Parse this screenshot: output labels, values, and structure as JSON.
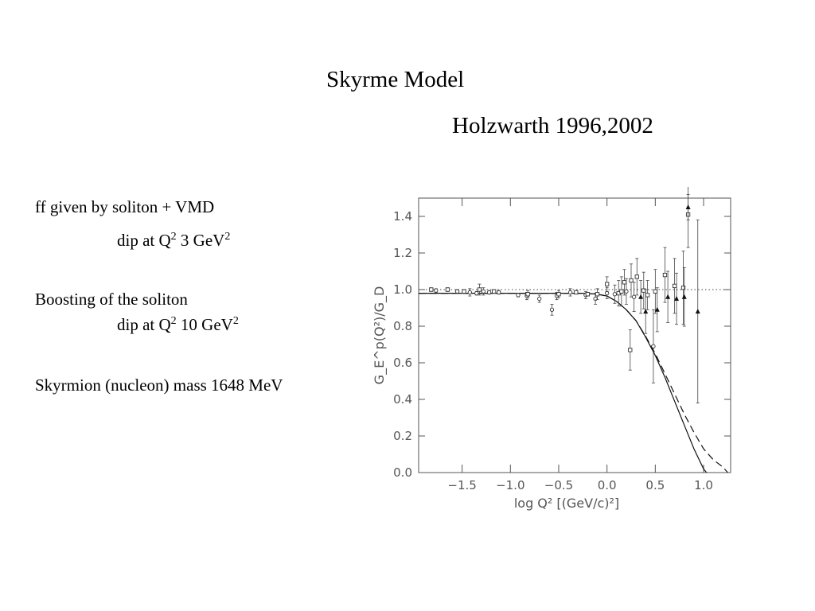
{
  "slide": {
    "title": "Skyrme Model",
    "subtitle": "Holzwarth 1996,2002",
    "line1": "ff given by soliton + VMD",
    "dip1_prefix": "dip at Q",
    "dip1_sup1": "2",
    "dip1_value": " 3 GeV",
    "dip1_sup2": "2",
    "line2": "Boosting of the soliton",
    "dip2_prefix": "dip at Q",
    "dip2_sup1": "2",
    "dip2_value": " 10 GeV",
    "dip2_sup2": "2",
    "line3": "Skyrmion (nucleon) mass 1648 MeV"
  },
  "chart_data": {
    "type": "scatter",
    "xlabel": "log Q² [(GeV/c)²]",
    "ylabel": "G_E^p(Q²)/G_D",
    "xlim": [
      -1.95,
      1.28
    ],
    "ylim": [
      0.0,
      1.5
    ],
    "x_ticks": [
      -1.5,
      -1.0,
      -0.5,
      0.0,
      0.5,
      1.0
    ],
    "x_tick_labels": [
      "−1.5",
      "−1.0",
      "−0.5",
      "0.0",
      "0.5",
      "1.0"
    ],
    "y_ticks": [
      0.0,
      0.2,
      0.4,
      0.6,
      0.8,
      1.0,
      1.2,
      1.4
    ],
    "y_tick_labels": [
      "0.0",
      "0.2",
      "0.4",
      "0.6",
      "0.8",
      "1.0",
      "1.2",
      "1.4"
    ],
    "reference_line": {
      "y": 1.0,
      "style": "dotted"
    },
    "curves": [
      {
        "style": "solid",
        "x": [
          -1.95,
          -1.5,
          -1.0,
          -0.5,
          -0.25,
          -0.1,
          0.0,
          0.1,
          0.2,
          0.3,
          0.4,
          0.5,
          0.6,
          0.7,
          0.8,
          0.9,
          1.0,
          1.03
        ],
        "y": [
          0.98,
          0.98,
          0.98,
          0.98,
          0.98,
          0.975,
          0.965,
          0.935,
          0.89,
          0.83,
          0.74,
          0.64,
          0.52,
          0.39,
          0.26,
          0.13,
          0.02,
          0.0
        ]
      },
      {
        "style": "dashed",
        "x": [
          -1.95,
          -1.5,
          -1.0,
          -0.5,
          -0.25,
          -0.1,
          0.0,
          0.1,
          0.2,
          0.3,
          0.4,
          0.5,
          0.6,
          0.7,
          0.8,
          0.9,
          1.0,
          1.1,
          1.2,
          1.25
        ],
        "y": [
          0.98,
          0.98,
          0.98,
          0.98,
          0.98,
          0.975,
          0.965,
          0.935,
          0.89,
          0.83,
          0.745,
          0.65,
          0.54,
          0.43,
          0.32,
          0.22,
          0.13,
          0.07,
          0.03,
          0.0
        ]
      }
    ],
    "points": [
      {
        "x": -1.82,
        "y": 1.0,
        "err": 0.01,
        "m": "sq"
      },
      {
        "x": -1.77,
        "y": 0.995,
        "err": 0.01,
        "m": "circ"
      },
      {
        "x": -1.65,
        "y": 1.0,
        "err": 0.01,
        "m": "sq"
      },
      {
        "x": -1.55,
        "y": 0.99,
        "err": 0.01,
        "m": "circ"
      },
      {
        "x": -1.48,
        "y": 0.99,
        "err": 0.01,
        "m": "sq"
      },
      {
        "x": -1.42,
        "y": 0.985,
        "err": 0.02,
        "m": "circ"
      },
      {
        "x": -1.35,
        "y": 0.98,
        "err": 0.01,
        "m": "circ"
      },
      {
        "x": -1.32,
        "y": 1.0,
        "err": 0.03,
        "m": "sq"
      },
      {
        "x": -1.28,
        "y": 0.99,
        "err": 0.02,
        "m": "circ"
      },
      {
        "x": -1.22,
        "y": 0.985,
        "err": 0.01,
        "m": "circ"
      },
      {
        "x": -1.17,
        "y": 0.99,
        "err": 0.01,
        "m": "sq"
      },
      {
        "x": -1.12,
        "y": 0.985,
        "err": 0.01,
        "m": "circ"
      },
      {
        "x": -0.92,
        "y": 0.97,
        "err": 0.01,
        "m": "circ"
      },
      {
        "x": -0.83,
        "y": 0.965,
        "err": 0.02,
        "m": "circ"
      },
      {
        "x": -0.82,
        "y": 0.975,
        "err": 0.02,
        "m": "sq"
      },
      {
        "x": -0.7,
        "y": 0.95,
        "err": 0.02,
        "m": "circ"
      },
      {
        "x": -0.57,
        "y": 0.89,
        "err": 0.03,
        "m": "circ"
      },
      {
        "x": -0.52,
        "y": 0.965,
        "err": 0.02,
        "m": "circ"
      },
      {
        "x": -0.5,
        "y": 0.975,
        "err": 0.02,
        "m": "sq"
      },
      {
        "x": -0.38,
        "y": 0.985,
        "err": 0.02,
        "m": "circ"
      },
      {
        "x": -0.32,
        "y": 0.985,
        "err": 0.01,
        "m": "sq"
      },
      {
        "x": -0.22,
        "y": 0.97,
        "err": 0.02,
        "m": "circ"
      },
      {
        "x": -0.2,
        "y": 0.975,
        "err": 0.01,
        "m": "sq"
      },
      {
        "x": -0.12,
        "y": 0.95,
        "err": 0.03,
        "m": "circ"
      },
      {
        "x": -0.1,
        "y": 0.975,
        "err": 0.03,
        "m": "sq"
      },
      {
        "x": 0.0,
        "y": 0.98,
        "err": 0.03,
        "m": "circ"
      },
      {
        "x": 0.0,
        "y": 1.03,
        "err": 0.04,
        "m": "sq"
      },
      {
        "x": 0.08,
        "y": 0.975,
        "err": 0.05,
        "m": "circ"
      },
      {
        "x": 0.12,
        "y": 0.98,
        "err": 0.07,
        "m": "sq"
      },
      {
        "x": 0.15,
        "y": 0.99,
        "err": 0.08,
        "m": "sq"
      },
      {
        "x": 0.18,
        "y": 1.04,
        "err": 0.07,
        "m": "sq"
      },
      {
        "x": 0.2,
        "y": 0.99,
        "err": 0.07,
        "m": "circ"
      },
      {
        "x": 0.24,
        "y": 0.67,
        "err": 0.11,
        "m": "sq"
      },
      {
        "x": 0.25,
        "y": 1.05,
        "err": 0.09,
        "m": "sq"
      },
      {
        "x": 0.28,
        "y": 0.96,
        "err": 0.08,
        "m": "circ"
      },
      {
        "x": 0.31,
        "y": 1.07,
        "err": 0.1,
        "m": "sq"
      },
      {
        "x": 0.35,
        "y": 0.96,
        "err": 0.09,
        "m": "tri"
      },
      {
        "x": 0.38,
        "y": 0.995,
        "err": 0.1,
        "m": "sq"
      },
      {
        "x": 0.4,
        "y": 0.88,
        "err": 0.12,
        "m": "tri"
      },
      {
        "x": 0.42,
        "y": 0.97,
        "err": 0.08,
        "m": "sq"
      },
      {
        "x": 0.48,
        "y": 0.69,
        "err": 0.2,
        "m": "circ"
      },
      {
        "x": 0.5,
        "y": 0.99,
        "err": 0.12,
        "m": "sq"
      },
      {
        "x": 0.52,
        "y": 0.89,
        "err": 0.12,
        "m": "tri"
      },
      {
        "x": 0.6,
        "y": 1.08,
        "err": 0.15,
        "m": "sq"
      },
      {
        "x": 0.63,
        "y": 0.96,
        "err": 0.14,
        "m": "tri"
      },
      {
        "x": 0.7,
        "y": 1.02,
        "err": 0.15,
        "m": "sq"
      },
      {
        "x": 0.72,
        "y": 0.95,
        "err": 0.14,
        "m": "tri"
      },
      {
        "x": 0.79,
        "y": 1.01,
        "err": 0.2,
        "m": "sq"
      },
      {
        "x": 0.8,
        "y": 0.96,
        "err": 0.16,
        "m": "tri"
      },
      {
        "x": 0.84,
        "y": 1.41,
        "err": 0.18,
        "m": "sq"
      },
      {
        "x": 0.84,
        "y": 1.45,
        "err": 0.07,
        "m": "tri"
      },
      {
        "x": 0.94,
        "y": 0.88,
        "err": 0.5,
        "m": "tri"
      }
    ]
  }
}
